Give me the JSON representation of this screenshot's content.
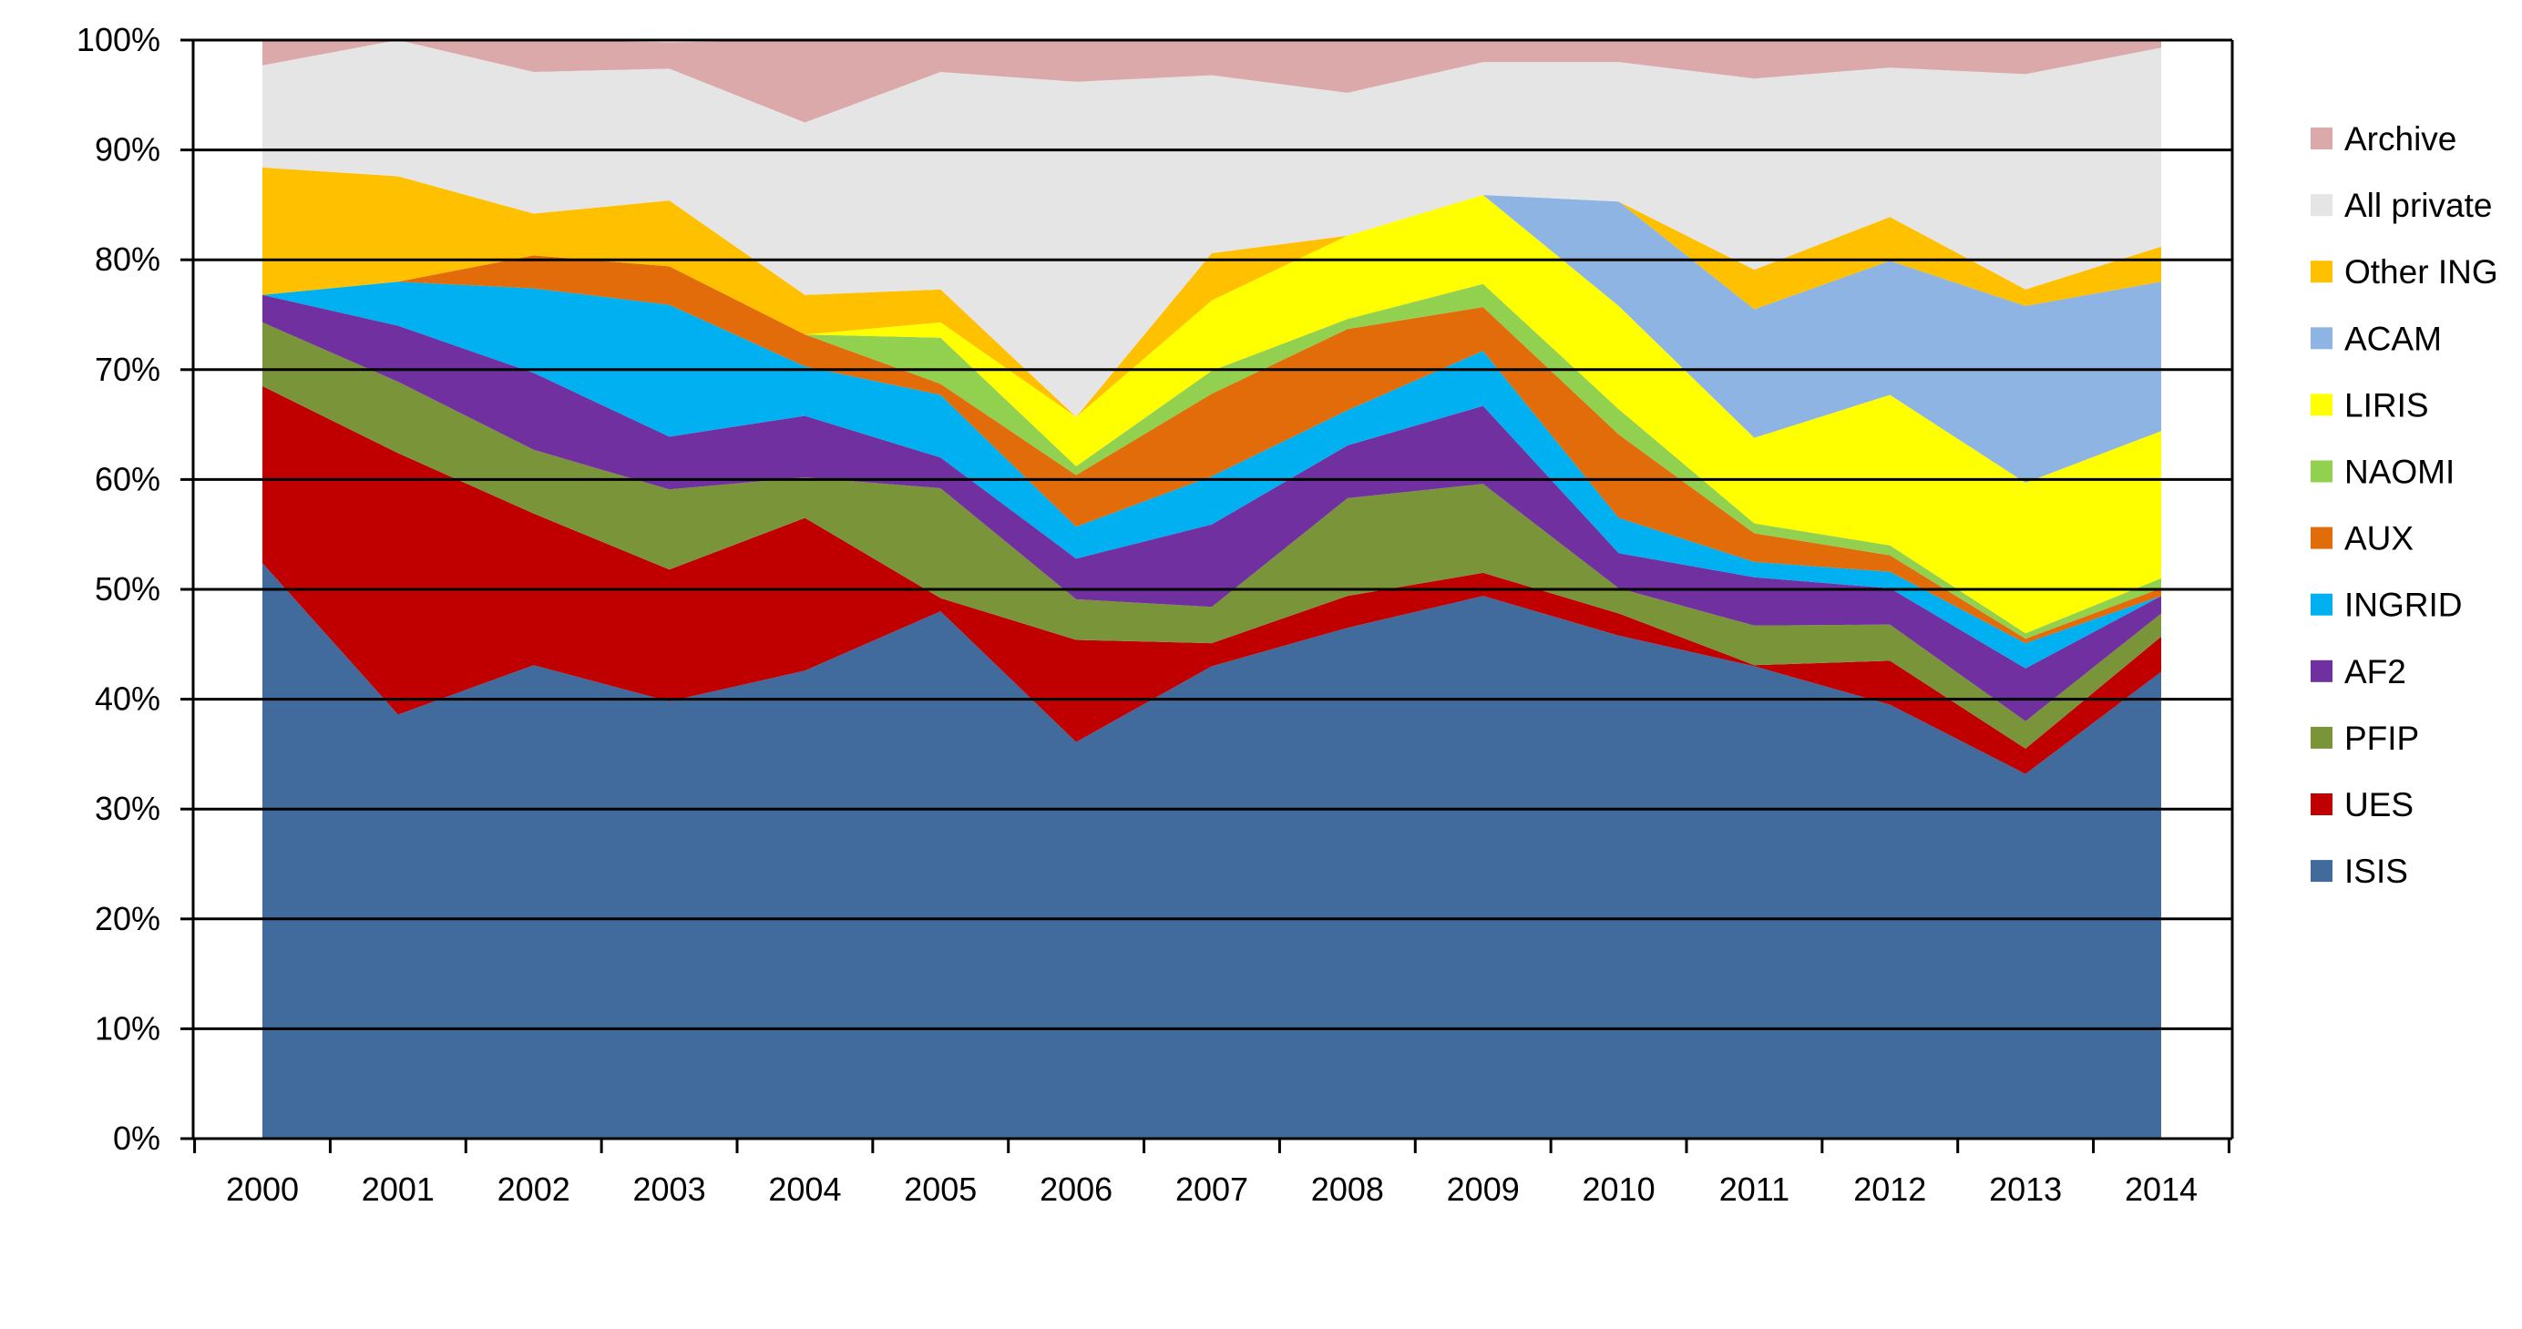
{
  "chart_data": {
    "type": "area",
    "stacked": true,
    "x": [
      "2000",
      "2001",
      "2002",
      "2003",
      "2004",
      "2005",
      "2006",
      "2007",
      "2008",
      "2009",
      "2010",
      "2011",
      "2012",
      "2013",
      "2014"
    ],
    "y_tick_labels": [
      "0%",
      "10%",
      "20%",
      "30%",
      "40%",
      "50%",
      "60%",
      "70%",
      "80%",
      "90%",
      "100%"
    ],
    "ylim": [
      0,
      100
    ],
    "title": "",
    "xlabel": "",
    "ylabel": "",
    "grid": "horizontal",
    "legend_position": "right",
    "series": [
      {
        "name": "ISIS",
        "color": "#406B9C",
        "values": [
          52.4,
          38.6,
          43.1,
          39.8,
          42.6,
          48.0,
          36.1,
          43.0,
          46.5,
          49.4,
          45.8,
          43.0,
          39.5,
          33.2,
          42.5
        ]
      },
      {
        "name": "UES",
        "color": "#C00000",
        "values": [
          16.1,
          23.8,
          13.8,
          12.0,
          13.9,
          1.2,
          9.3,
          2.1,
          2.9,
          2.1,
          2.0,
          0.1,
          4.0,
          2.3,
          3.2
        ]
      },
      {
        "name": "PFIP",
        "color": "#7A943A",
        "values": [
          5.8,
          6.5,
          5.8,
          7.3,
          3.7,
          10.0,
          3.7,
          3.3,
          8.9,
          8.1,
          2.3,
          3.6,
          3.3,
          2.5,
          2.1
        ]
      },
      {
        "name": "AF2",
        "color": "#7030A0",
        "values": [
          2.5,
          5.1,
          7.0,
          4.8,
          5.6,
          2.8,
          3.7,
          7.5,
          4.8,
          7.1,
          3.2,
          4.4,
          3.3,
          4.8,
          1.6
        ]
      },
      {
        "name": "INGRID",
        "color": "#00B0F0",
        "values": [
          0.0,
          4.0,
          7.7,
          12.0,
          4.5,
          5.7,
          2.9,
          4.4,
          3.2,
          5.0,
          3.2,
          1.4,
          1.5,
          2.3,
          0.0
        ]
      },
      {
        "name": "AUX",
        "color": "#E36C0A",
        "values": [
          0.0,
          0.0,
          3.0,
          3.5,
          2.9,
          1.0,
          4.7,
          7.5,
          7.4,
          4.0,
          7.6,
          2.6,
          1.5,
          0.4,
          0.7
        ]
      },
      {
        "name": "NAOMI",
        "color": "#92D050",
        "values": [
          0.0,
          0.0,
          0.0,
          0.0,
          0.0,
          4.2,
          0.8,
          2.1,
          0.9,
          2.1,
          2.3,
          0.9,
          0.9,
          0.5,
          0.9
        ]
      },
      {
        "name": "LIRIS",
        "color": "#FFFF00",
        "values": [
          0.0,
          0.0,
          0.0,
          0.0,
          0.0,
          1.4,
          4.5,
          6.4,
          7.6,
          8.1,
          9.4,
          7.8,
          13.7,
          13.7,
          13.4
        ]
      },
      {
        "name": "ACAM",
        "color": "#8EB4E3",
        "values": [
          0.0,
          0.0,
          0.0,
          0.0,
          0.0,
          0.0,
          0.0,
          0.0,
          0.0,
          0.0,
          9.5,
          11.7,
          12.2,
          16.1,
          13.6
        ]
      },
      {
        "name": "Other ING",
        "color": "#FFC000",
        "values": [
          11.6,
          9.6,
          3.8,
          6.0,
          3.6,
          3.0,
          0.0,
          4.3,
          0.0,
          0.0,
          0.0,
          3.6,
          4.0,
          1.5,
          3.2
        ]
      },
      {
        "name": "All private",
        "color": "#E5E5E5",
        "values": [
          9.3,
          12.4,
          12.9,
          12.0,
          15.7,
          19.8,
          30.5,
          16.2,
          13.0,
          12.1,
          12.7,
          17.4,
          13.6,
          19.6,
          18.1
        ]
      },
      {
        "name": "Archive",
        "color": "#DBA9A9",
        "values": [
          2.3,
          0.0,
          2.9,
          2.4,
          7.5,
          2.9,
          3.8,
          3.2,
          4.8,
          2.0,
          2.1,
          3.6,
          2.4,
          3.2,
          0.7
        ]
      }
    ]
  }
}
